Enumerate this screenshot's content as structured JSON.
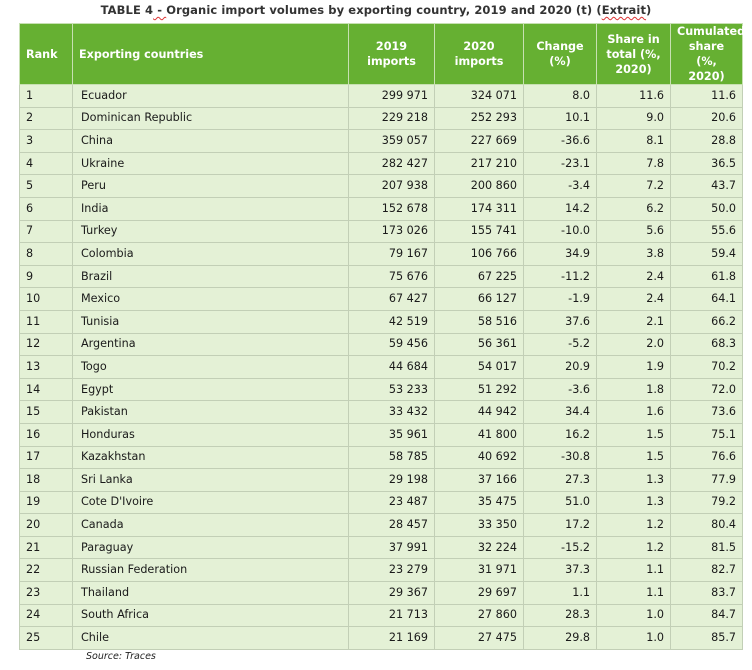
{
  "caption": {
    "prefix": "TABLE 4",
    "squig_dash": " - ",
    "text": "Organic import volumes by exporting country, 2019 and 2020 (t) (",
    "squig_word": "Extrait",
    "suffix": ")"
  },
  "headers": {
    "rank": "Rank",
    "country": "Exporting countries",
    "imports2019_l1": "2019",
    "imports2019_l2": "imports",
    "imports2020_l1": "2020",
    "imports2020_l2": "imports",
    "change_l1": "Change",
    "change_l2": "(%)",
    "share_l1": "Share in",
    "share_l2": "total (%,",
    "share_l3": "2020)",
    "cum_l1": "Cumulated",
    "cum_l2": "share (%,",
    "cum_l3": "2020)"
  },
  "rows": [
    {
      "rank": "1",
      "country": "Ecuador",
      "imp2019": "299 971",
      "imp2020": "324 071",
      "change": "8.0",
      "share": "11.6",
      "cum": "11.6"
    },
    {
      "rank": "2",
      "country": "Dominican Republic",
      "imp2019": "229 218",
      "imp2020": "252 293",
      "change": "10.1",
      "share": "9.0",
      "cum": "20.6"
    },
    {
      "rank": "3",
      "country": "China",
      "imp2019": "359 057",
      "imp2020": "227 669",
      "change": "-36.6",
      "share": "8.1",
      "cum": "28.8"
    },
    {
      "rank": "4",
      "country": "Ukraine",
      "imp2019": "282 427",
      "imp2020": "217 210",
      "change": "-23.1",
      "share": "7.8",
      "cum": "36.5"
    },
    {
      "rank": "5",
      "country": "Peru",
      "imp2019": "207 938",
      "imp2020": "200 860",
      "change": "-3.4",
      "share": "7.2",
      "cum": "43.7"
    },
    {
      "rank": "6",
      "country": "India",
      "imp2019": "152 678",
      "imp2020": "174 311",
      "change": "14.2",
      "share": "6.2",
      "cum": "50.0"
    },
    {
      "rank": "7",
      "country": "Turkey",
      "imp2019": "173 026",
      "imp2020": "155 741",
      "change": "-10.0",
      "share": "5.6",
      "cum": "55.6"
    },
    {
      "rank": "8",
      "country": "Colombia",
      "imp2019": "79 167",
      "imp2020": "106 766",
      "change": "34.9",
      "share": "3.8",
      "cum": "59.4"
    },
    {
      "rank": "9",
      "country": "Brazil",
      "imp2019": "75 676",
      "imp2020": "67 225",
      "change": "-11.2",
      "share": "2.4",
      "cum": "61.8"
    },
    {
      "rank": "10",
      "country": "Mexico",
      "imp2019": "67 427",
      "imp2020": "66 127",
      "change": "-1.9",
      "share": "2.4",
      "cum": "64.1"
    },
    {
      "rank": "11",
      "country": "Tunisia",
      "imp2019": "42 519",
      "imp2020": "58 516",
      "change": "37.6",
      "share": "2.1",
      "cum": "66.2"
    },
    {
      "rank": "12",
      "country": "Argentina",
      "imp2019": "59 456",
      "imp2020": "56 361",
      "change": "-5.2",
      "share": "2.0",
      "cum": "68.3"
    },
    {
      "rank": "13",
      "country": "Togo",
      "imp2019": "44 684",
      "imp2020": "54 017",
      "change": "20.9",
      "share": "1.9",
      "cum": "70.2"
    },
    {
      "rank": "14",
      "country": "Egypt",
      "imp2019": "53 233",
      "imp2020": "51 292",
      "change": "-3.6",
      "share": "1.8",
      "cum": "72.0"
    },
    {
      "rank": "15",
      "country": "Pakistan",
      "imp2019": "33 432",
      "imp2020": "44 942",
      "change": "34.4",
      "share": "1.6",
      "cum": "73.6"
    },
    {
      "rank": "16",
      "country": "Honduras",
      "imp2019": "35 961",
      "imp2020": "41 800",
      "change": "16.2",
      "share": "1.5",
      "cum": "75.1"
    },
    {
      "rank": "17",
      "country": "Kazakhstan",
      "imp2019": "58 785",
      "imp2020": "40 692",
      "change": "-30.8",
      "share": "1.5",
      "cum": "76.6"
    },
    {
      "rank": "18",
      "country": "Sri Lanka",
      "imp2019": "29 198",
      "imp2020": "37 166",
      "change": "27.3",
      "share": "1.3",
      "cum": "77.9"
    },
    {
      "rank": "19",
      "country": "Cote D'Ivoire",
      "imp2019": "23 487",
      "imp2020": "35 475",
      "change": "51.0",
      "share": "1.3",
      "cum": "79.2"
    },
    {
      "rank": "20",
      "country": "Canada",
      "imp2019": "28 457",
      "imp2020": "33 350",
      "change": "17.2",
      "share": "1.2",
      "cum": "80.4"
    },
    {
      "rank": "21",
      "country": "Paraguay",
      "imp2019": "37 991",
      "imp2020": "32 224",
      "change": "-15.2",
      "share": "1.2",
      "cum": "81.5"
    },
    {
      "rank": "22",
      "country": "Russian Federation",
      "imp2019": "23 279",
      "imp2020": "31 971",
      "change": "37.3",
      "share": "1.1",
      "cum": "82.7"
    },
    {
      "rank": "23",
      "country": "Thailand",
      "imp2019": "29 367",
      "imp2020": "29 697",
      "change": "1.1",
      "share": "1.1",
      "cum": "83.7"
    },
    {
      "rank": "24",
      "country": "South Africa",
      "imp2019": "21 713",
      "imp2020": "27 860",
      "change": "28.3",
      "share": "1.0",
      "cum": "84.7"
    },
    {
      "rank": "25",
      "country": "Chile",
      "imp2019": "21 169",
      "imp2020": "27 475",
      "change": "29.8",
      "share": "1.0",
      "cum": "85.7"
    }
  ],
  "source": "Source: Traces",
  "colors": {
    "header_bg": "#66b032",
    "row_bg": "#e4f1d6"
  }
}
